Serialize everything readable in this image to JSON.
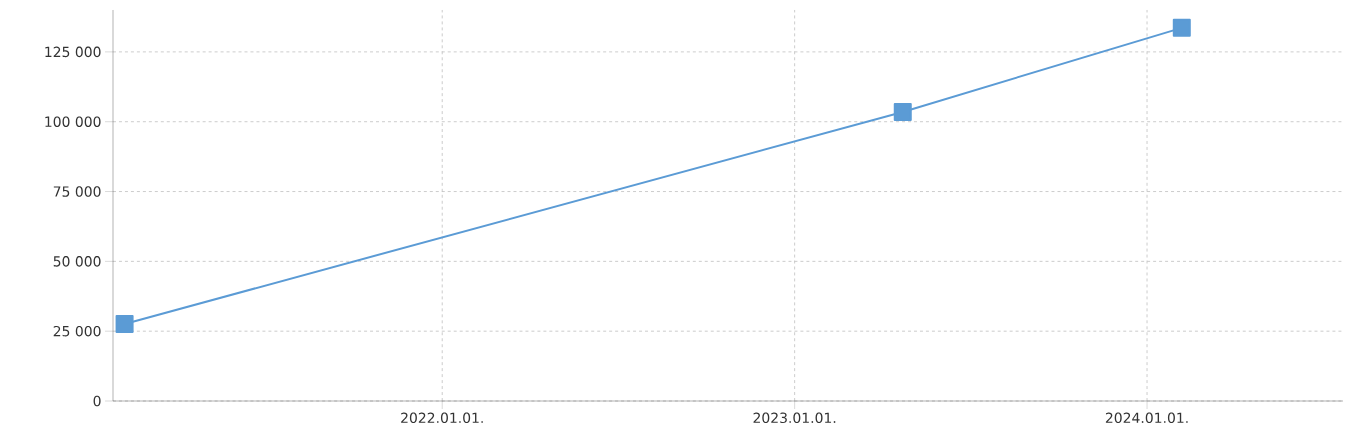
{
  "chart_data": {
    "type": "line",
    "x": [
      "2021-02-06",
      "2023-04-23",
      "2024-02-06"
    ],
    "series": [
      {
        "color": "#5b9bd5",
        "values": [
          27600,
          103500,
          133600
        ]
      }
    ],
    "xlim": [
      "2021-01-25",
      "2024-07-22"
    ],
    "xticks": [
      {
        "value": "2022-01-01",
        "label": "2022.01.01."
      },
      {
        "value": "2023-01-01",
        "label": "2023.01.01."
      },
      {
        "value": "2024-01-01",
        "label": "2024.01.01."
      }
    ],
    "ylim": [
      0,
      140000
    ],
    "yticks": [
      0,
      {
        "value": 25000,
        "label": "25 000"
      },
      {
        "value": 50000,
        "label": "50 000"
      },
      {
        "value": 75000,
        "label": "75 000"
      },
      {
        "value": 100000,
        "label": "100 000"
      },
      {
        "value": 125000,
        "label": "125 000"
      }
    ],
    "grid": true,
    "marker": "square",
    "line_style": "solid"
  }
}
